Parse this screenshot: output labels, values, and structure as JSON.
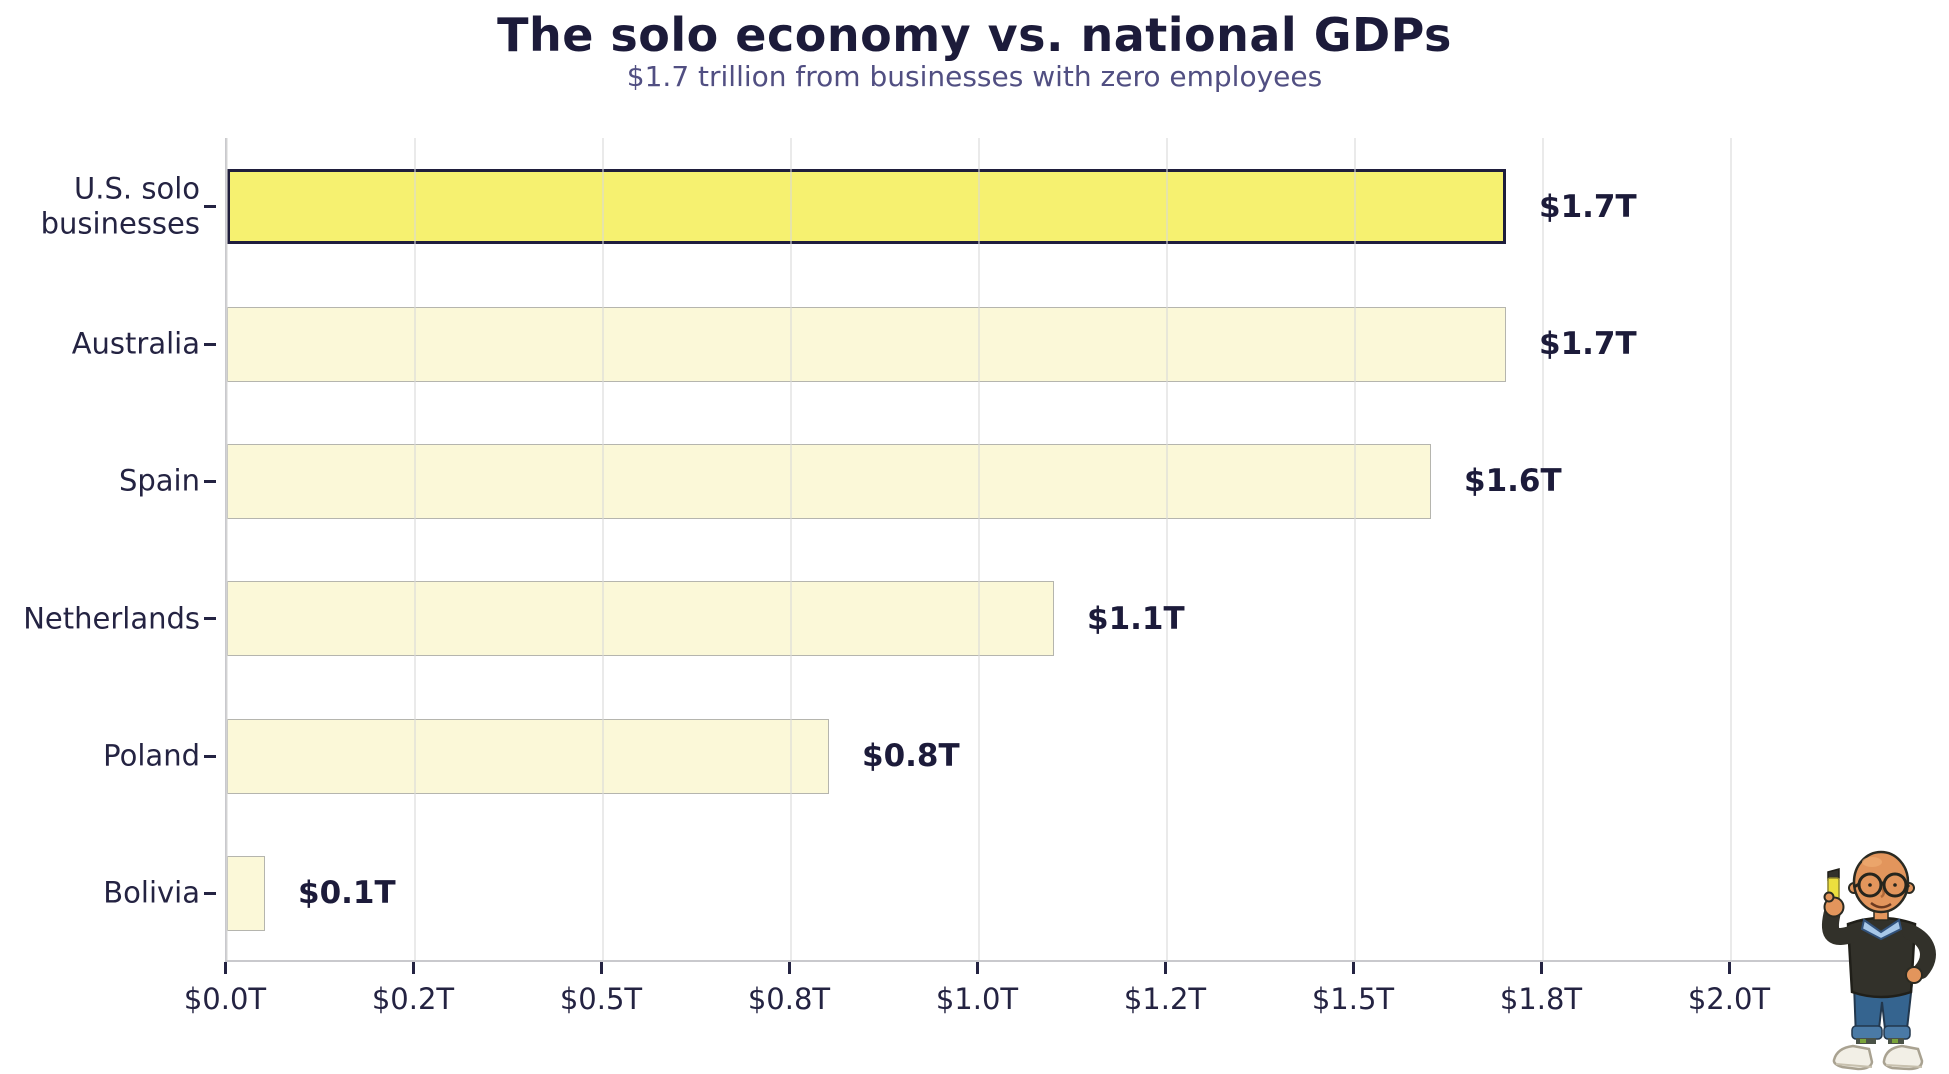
{
  "title": "The solo economy vs. national GDPs",
  "subtitle": "$1.7 trillion from businesses with zero employees",
  "chart_data": {
    "type": "bar",
    "orientation": "horizontal",
    "title": "The solo economy vs. national GDPs",
    "subtitle": "$1.7 trillion from businesses with zero employees",
    "categories": [
      "U.S. solo businesses",
      "Australia",
      "Spain",
      "Netherlands",
      "Poland",
      "Bolivia"
    ],
    "values": [
      1.7,
      1.7,
      1.6,
      1.1,
      0.8,
      0.05
    ],
    "value_labels": [
      "$1.7T",
      "$1.7T",
      "$1.6T",
      "$1.1T",
      "$0.8T",
      "$0.1T"
    ],
    "highlighted_category": "U.S. solo businesses",
    "x_ticks": [
      0,
      0.25,
      0.5,
      0.75,
      1.0,
      1.25,
      1.5,
      1.75,
      2.0
    ],
    "x_tick_labels": [
      "$0.0T",
      "$0.2T",
      "$0.5T",
      "$0.8T",
      "$1.0T",
      "$1.2T",
      "$1.5T",
      "$1.8T",
      "$2.0T"
    ],
    "xlim": [
      0,
      2.24
    ],
    "grid": "vertical",
    "legend": "none",
    "colors": {
      "highlight_fill": "#f6f170",
      "highlight_border": "#1f1e3d",
      "bar_fill": "#fbf8d8",
      "bar_border": "#b5b5ae",
      "grid": "#d8d8d8",
      "spine": "#c9c9cd",
      "text": "#242342",
      "title": "#1c1b3a",
      "subtitle": "#514f82"
    }
  },
  "mascot": {
    "description": "Cartoon bald man with round glasses, dark sweater over light blue collared shirt, blue jeans and white sneakers, holding up a yellow highlighter"
  }
}
